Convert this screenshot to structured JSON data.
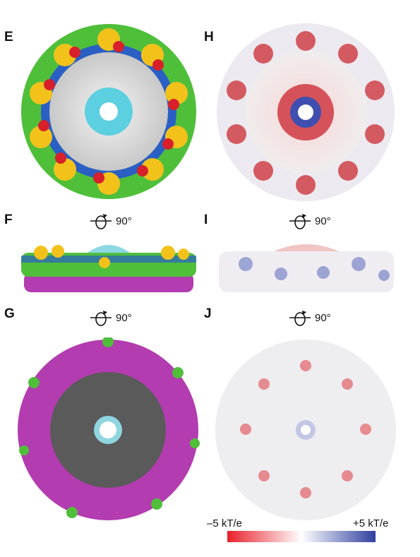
{
  "panels": {
    "E": "E",
    "F": "F",
    "G": "G",
    "H": "H",
    "I": "I",
    "J": "J"
  },
  "rotations": {
    "f": "90°",
    "g": "90°",
    "i": "90°",
    "j": "90°"
  },
  "scale": {
    "min_label": "–5 kT/e",
    "max_label": "+5 kT/e",
    "colors": {
      "negative": "#e8202a",
      "neutral": "#ffffff",
      "positive": "#2f3f9e"
    }
  },
  "colors": {
    "green": "#4fbf3a",
    "yellow": "#f2c21b",
    "blue": "#2a5fc4",
    "red": "#d8202a",
    "cyan": "#5ccfe0",
    "grey_light": "#d8d8d8",
    "magenta": "#b23cb0",
    "dark_grey": "#5a5a5a"
  }
}
